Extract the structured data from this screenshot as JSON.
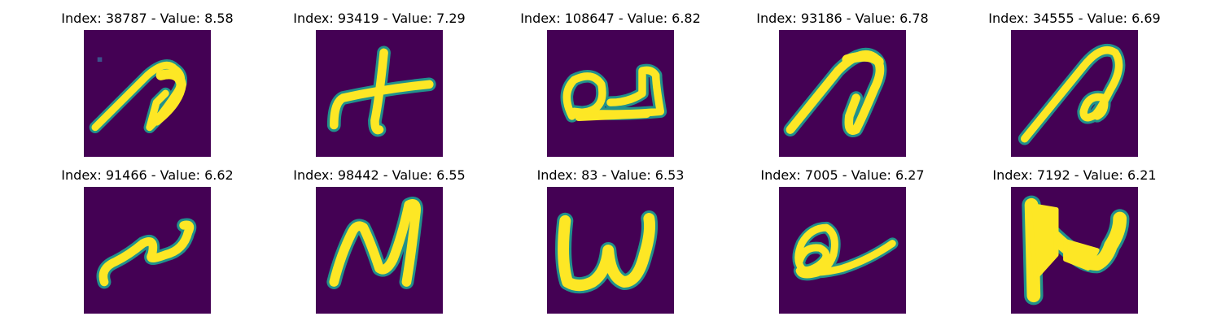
{
  "colors": {
    "background": "#440154",
    "foreground": "#fde725",
    "edge": "#21918c"
  },
  "panels": [
    {
      "index": "38787",
      "value": "8.58",
      "label": "Index: 38787 - Value: 8.58",
      "glyph": "curl-a"
    },
    {
      "index": "93419",
      "value": "7.29",
      "label": "Index: 93419 - Value: 7.29",
      "glyph": "plus-cross"
    },
    {
      "index": "108647",
      "value": "6.82",
      "label": "Index: 108647 - Value: 6.82",
      "glyph": "loop-u"
    },
    {
      "index": "93186",
      "value": "6.78",
      "label": "Index: 93186 - Value: 6.78",
      "glyph": "curl-n"
    },
    {
      "index": "34555",
      "value": "6.69",
      "label": "Index: 34555 - Value: 6.69",
      "glyph": "curl-a-loop"
    },
    {
      "index": "91466",
      "value": "6.62",
      "label": "Index: 91466 - Value: 6.62",
      "glyph": "wave"
    },
    {
      "index": "98442",
      "value": "6.55",
      "label": "Index: 98442 - Value: 6.55",
      "glyph": "n-shape"
    },
    {
      "index": "83",
      "value": "6.53",
      "label": "Index: 83 - Value: 6.53",
      "glyph": "w-shape"
    },
    {
      "index": "7005",
      "value": "6.27",
      "label": "Index: 7005 - Value: 6.27",
      "glyph": "e-shape"
    },
    {
      "index": "7192",
      "value": "6.21",
      "label": "Index: 7192 - Value: 6.21",
      "glyph": "block-n"
    }
  ]
}
